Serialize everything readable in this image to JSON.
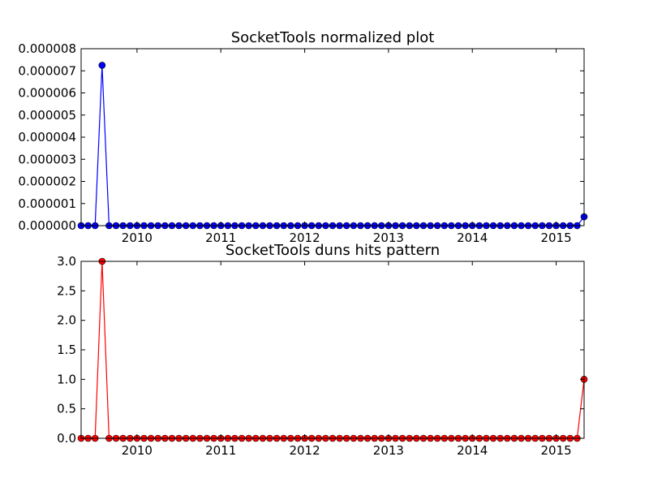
{
  "chart_data": [
    {
      "type": "line",
      "title": "SocketTools normalized plot",
      "xlabel": "",
      "ylabel": "",
      "xlim": [
        "2009-05",
        "2015-05"
      ],
      "ylim": [
        0,
        8e-06
      ],
      "x_ticks": [
        "2010",
        "2011",
        "2012",
        "2013",
        "2014",
        "2015"
      ],
      "y_ticks": [
        "0.000000",
        "0.000001",
        "0.000002",
        "0.000003",
        "0.000004",
        "0.000005",
        "0.000006",
        "0.000007",
        "0.000008"
      ],
      "grid": false,
      "markers": true,
      "line_color": "#0000ff",
      "marker_color": "#0000ff",
      "series": [
        {
          "x": [
            "2009-05",
            "2009-06",
            "2009-07",
            "2009-08",
            "2009-09",
            "2009-10",
            "2009-11",
            "2009-12",
            "2010-01",
            "2010-02",
            "2010-03",
            "2010-04",
            "2010-05",
            "2010-06",
            "2010-07",
            "2010-08",
            "2010-09",
            "2010-10",
            "2010-11",
            "2010-12",
            "2011-01",
            "2011-02",
            "2011-03",
            "2011-04",
            "2011-05",
            "2011-06",
            "2011-07",
            "2011-08",
            "2011-09",
            "2011-10",
            "2011-11",
            "2011-12",
            "2012-01",
            "2012-02",
            "2012-03",
            "2012-04",
            "2012-05",
            "2012-06",
            "2012-07",
            "2012-08",
            "2012-09",
            "2012-10",
            "2012-11",
            "2012-12",
            "2013-01",
            "2013-02",
            "2013-03",
            "2013-04",
            "2013-05",
            "2013-06",
            "2013-07",
            "2013-08",
            "2013-09",
            "2013-10",
            "2013-11",
            "2013-12",
            "2014-01",
            "2014-02",
            "2014-03",
            "2014-04",
            "2014-05",
            "2014-06",
            "2014-07",
            "2014-08",
            "2014-09",
            "2014-10",
            "2014-11",
            "2014-12",
            "2015-01",
            "2015-02",
            "2015-03",
            "2015-04",
            "2015-05"
          ],
          "values": [
            0,
            0,
            0,
            7.25e-06,
            0,
            0,
            0,
            0,
            0,
            0,
            0,
            0,
            0,
            0,
            0,
            0,
            0,
            0,
            0,
            0,
            0,
            0,
            0,
            0,
            0,
            0,
            0,
            0,
            0,
            0,
            0,
            0,
            0,
            0,
            0,
            0,
            0,
            0,
            0,
            0,
            0,
            0,
            0,
            0,
            0,
            0,
            0,
            0,
            0,
            0,
            0,
            0,
            0,
            0,
            0,
            0,
            0,
            0,
            0,
            0,
            0,
            0,
            0,
            0,
            0,
            0,
            0,
            0,
            0,
            0,
            0,
            0,
            4e-07
          ]
        }
      ]
    },
    {
      "type": "line",
      "title": "SocketTools duns hits pattern",
      "xlabel": "",
      "ylabel": "",
      "xlim": [
        "2009-05",
        "2015-05"
      ],
      "ylim": [
        0,
        3.0
      ],
      "x_ticks": [
        "2010",
        "2011",
        "2012",
        "2013",
        "2014",
        "2015"
      ],
      "y_ticks": [
        "0.0",
        "0.5",
        "1.0",
        "1.5",
        "2.0",
        "2.5",
        "3.0"
      ],
      "grid": false,
      "markers": true,
      "line_color": "#ff0000",
      "marker_color": "#ff0000",
      "series": [
        {
          "x": [
            "2009-05",
            "2009-06",
            "2009-07",
            "2009-08",
            "2009-09",
            "2009-10",
            "2009-11",
            "2009-12",
            "2010-01",
            "2010-02",
            "2010-03",
            "2010-04",
            "2010-05",
            "2010-06",
            "2010-07",
            "2010-08",
            "2010-09",
            "2010-10",
            "2010-11",
            "2010-12",
            "2011-01",
            "2011-02",
            "2011-03",
            "2011-04",
            "2011-05",
            "2011-06",
            "2011-07",
            "2011-08",
            "2011-09",
            "2011-10",
            "2011-11",
            "2011-12",
            "2012-01",
            "2012-02",
            "2012-03",
            "2012-04",
            "2012-05",
            "2012-06",
            "2012-07",
            "2012-08",
            "2012-09",
            "2012-10",
            "2012-11",
            "2012-12",
            "2013-01",
            "2013-02",
            "2013-03",
            "2013-04",
            "2013-05",
            "2013-06",
            "2013-07",
            "2013-08",
            "2013-09",
            "2013-10",
            "2013-11",
            "2013-12",
            "2014-01",
            "2014-02",
            "2014-03",
            "2014-04",
            "2014-05",
            "2014-06",
            "2014-07",
            "2014-08",
            "2014-09",
            "2014-10",
            "2014-11",
            "2014-12",
            "2015-01",
            "2015-02",
            "2015-03",
            "2015-04",
            "2015-05"
          ],
          "values": [
            0,
            0,
            0,
            3,
            0,
            0,
            0,
            0,
            0,
            0,
            0,
            0,
            0,
            0,
            0,
            0,
            0,
            0,
            0,
            0,
            0,
            0,
            0,
            0,
            0,
            0,
            0,
            0,
            0,
            0,
            0,
            0,
            0,
            0,
            0,
            0,
            0,
            0,
            0,
            0,
            0,
            0,
            0,
            0,
            0,
            0,
            0,
            0,
            0,
            0,
            0,
            0,
            0,
            0,
            0,
            0,
            0,
            0,
            0,
            0,
            0,
            0,
            0,
            0,
            0,
            0,
            0,
            0,
            0,
            0,
            0,
            0,
            1
          ]
        }
      ]
    }
  ]
}
